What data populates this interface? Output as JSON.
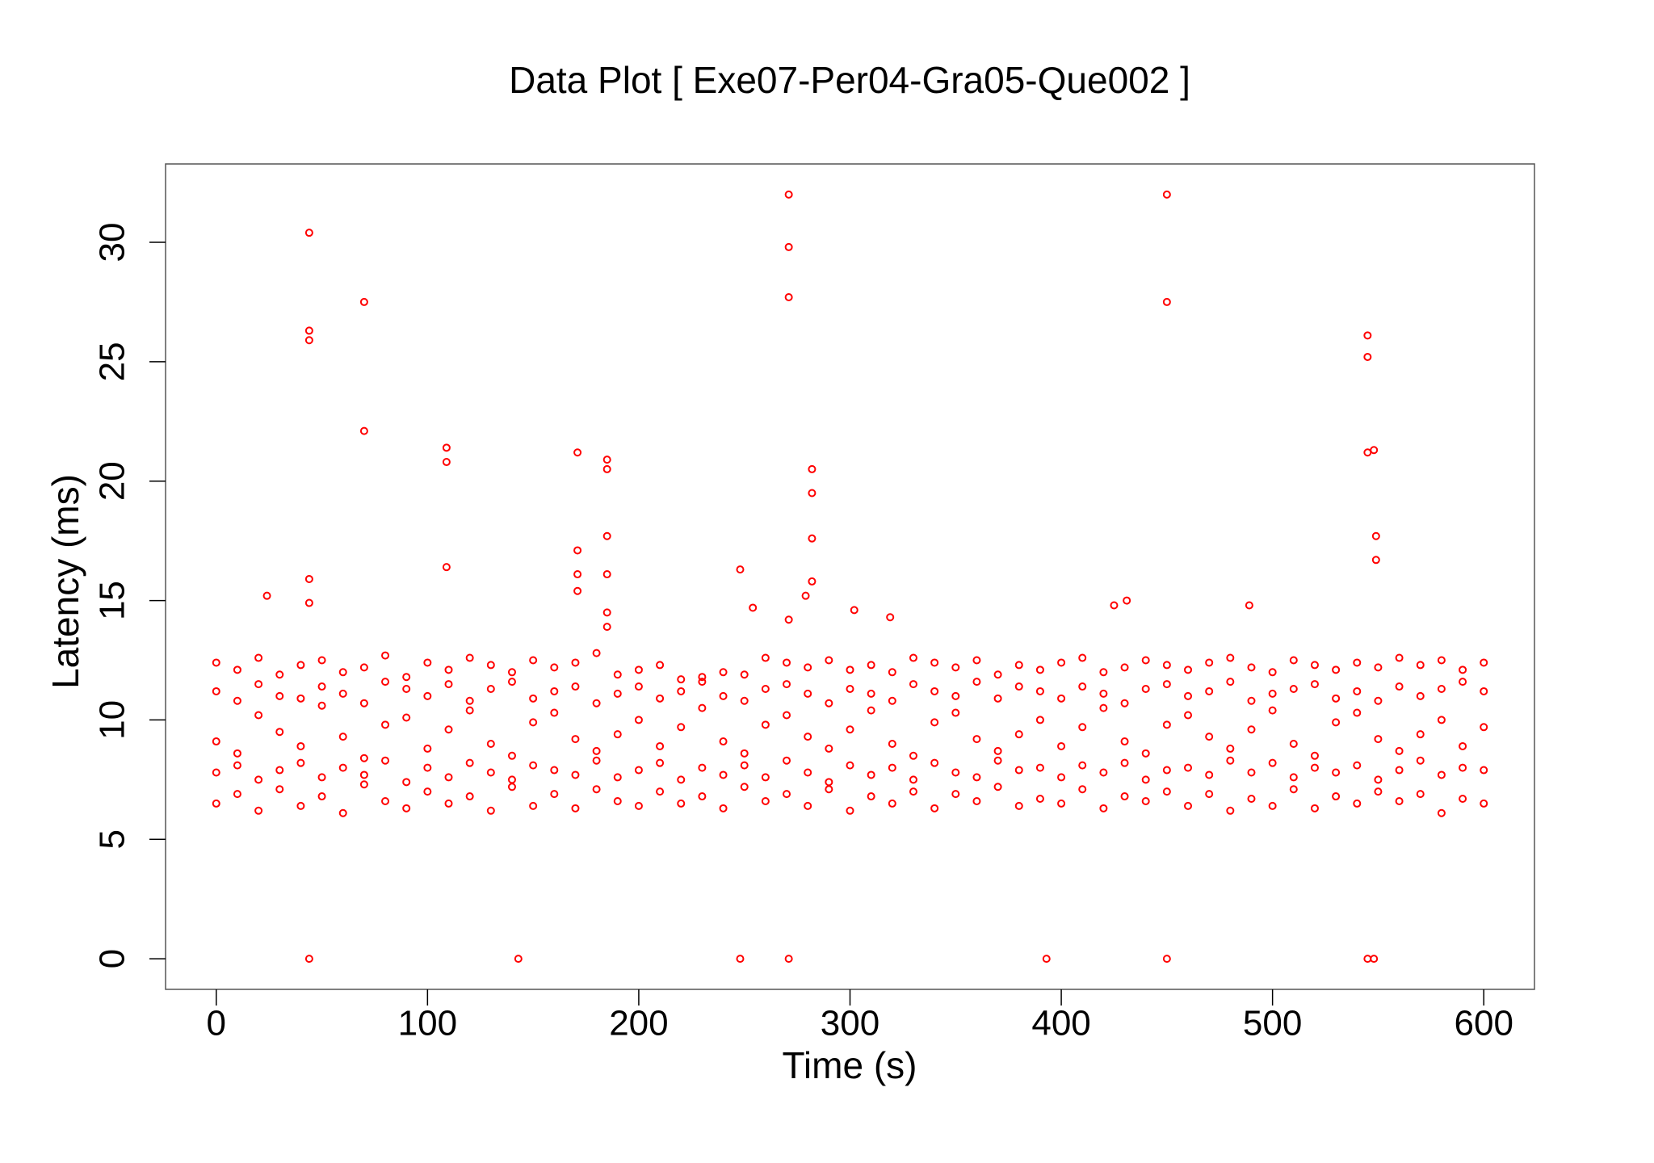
{
  "chart_data": {
    "type": "scatter",
    "title": "Data Plot [ Exe07-Per04-Gra05-Que002 ]",
    "xlabel": "Time (s)",
    "ylabel": "Latency (ms)",
    "xlim": [
      -24,
      624
    ],
    "ylim": [
      -1.28,
      33.28
    ],
    "xticks": [
      0,
      100,
      200,
      300,
      400,
      500,
      600
    ],
    "yticks": [
      0,
      5,
      10,
      15,
      20,
      25,
      30
    ],
    "color": "#ff0000",
    "series": [
      {
        "x": [
          44,
          44,
          44,
          44,
          44,
          44,
          70,
          70,
          109,
          109,
          109,
          143,
          171,
          171,
          171,
          171,
          185,
          185,
          185,
          185,
          185,
          185,
          248,
          248,
          254,
          271,
          271,
          271,
          271,
          271,
          282,
          282,
          282,
          282,
          279,
          302,
          319,
          393,
          425,
          431,
          450,
          450,
          450,
          489,
          545,
          545,
          545,
          548,
          549,
          549,
          545,
          548,
          24
        ],
        "values": [
          30.4,
          26.3,
          25.9,
          15.9,
          14.9,
          0,
          27.5,
          22.1,
          21.4,
          20.8,
          16.4,
          0,
          21.2,
          17.1,
          16.1,
          15.4,
          20.9,
          20.5,
          17.7,
          16.1,
          14.5,
          13.9,
          16.3,
          0,
          14.7,
          32,
          29.8,
          27.7,
          14.2,
          0,
          20.5,
          19.5,
          17.6,
          15.8,
          15.2,
          14.6,
          14.3,
          0,
          14.8,
          15.0,
          32,
          27.5,
          0,
          14.8,
          26.1,
          25.2,
          21.2,
          21.3,
          17.7,
          16.7,
          0,
          0,
          15.2
        ]
      },
      {
        "x": [
          0,
          10,
          20,
          30,
          40,
          50,
          60,
          70,
          80,
          90,
          100,
          110,
          120,
          130,
          140,
          150,
          160,
          170,
          180,
          190,
          200,
          210,
          220,
          230,
          240,
          250,
          260,
          270,
          280,
          290,
          300,
          310,
          320,
          330,
          340,
          350,
          360,
          370,
          380,
          390,
          400,
          410,
          420,
          430,
          440,
          450,
          460,
          470,
          480,
          490,
          500,
          510,
          520,
          530,
          540,
          550,
          560,
          570,
          580,
          590,
          600
        ],
        "values": [
          12.4,
          12.1,
          12.6,
          11.9,
          12.3,
          12.5,
          12.0,
          12.2,
          12.7,
          11.8,
          12.4,
          12.1,
          12.6,
          12.3,
          12.0,
          12.5,
          12.2,
          12.4,
          12.8,
          11.9,
          12.1,
          12.3,
          11.7,
          11.8,
          12.0,
          11.9,
          12.6,
          12.4,
          12.2,
          12.5,
          12.1,
          12.3,
          12.0,
          12.6,
          12.4,
          12.2,
          12.5,
          11.9,
          12.3,
          12.1,
          12.4,
          12.6,
          12.0,
          12.2,
          12.5,
          12.3,
          12.1,
          12.4,
          12.6,
          12.2,
          12.0,
          12.5,
          12.3,
          12.1,
          12.4,
          12.2,
          12.6,
          12.3,
          12.5,
          12.1,
          12.4
        ]
      },
      {
        "x": [
          0,
          10,
          20,
          30,
          40,
          50,
          60,
          70,
          80,
          90,
          100,
          110,
          120,
          130,
          140,
          150,
          160,
          170,
          180,
          190,
          200,
          210,
          220,
          230,
          240,
          250,
          260,
          270,
          280,
          290,
          300,
          310,
          320,
          330,
          340,
          350,
          360,
          370,
          380,
          390,
          400,
          410,
          420,
          430,
          440,
          450,
          460,
          470,
          480,
          490,
          500,
          510,
          520,
          530,
          540,
          550,
          560,
          570,
          580,
          590,
          600
        ],
        "values": [
          11.2,
          10.8,
          11.5,
          11.0,
          10.9,
          11.4,
          11.1,
          10.7,
          11.6,
          11.3,
          11.0,
          11.5,
          10.8,
          11.3,
          11.6,
          10.9,
          11.2,
          11.4,
          10.7,
          11.1,
          11.4,
          10.9,
          11.2,
          11.6,
          11.0,
          10.8,
          11.3,
          11.5,
          11.1,
          10.7,
          11.3,
          11.1,
          10.8,
          11.5,
          11.2,
          11.0,
          11.6,
          10.9,
          11.4,
          11.2,
          10.9,
          11.4,
          11.1,
          10.7,
          11.3,
          11.5,
          11.0,
          11.2,
          11.6,
          10.8,
          11.1,
          11.3,
          11.5,
          10.9,
          11.2,
          10.8,
          11.4,
          11.0,
          11.3,
          11.6,
          11.2
        ]
      },
      {
        "x": [
          0,
          10,
          20,
          30,
          40,
          50,
          60,
          70,
          80,
          90,
          100,
          110,
          120,
          130,
          140,
          150,
          160,
          170,
          180,
          190,
          200,
          210,
          220,
          230,
          240,
          250,
          260,
          270,
          280,
          290,
          300,
          310,
          320,
          330,
          340,
          350,
          360,
          370,
          380,
          390,
          400,
          410,
          420,
          430,
          440,
          450,
          460,
          470,
          480,
          490,
          500,
          510,
          520,
          530,
          540,
          550,
          560,
          570,
          580,
          590,
          600
        ],
        "values": [
          9.1,
          8.6,
          10.2,
          9.5,
          8.9,
          10.6,
          9.3,
          8.4,
          9.8,
          10.1,
          8.8,
          9.6,
          10.4,
          9.0,
          8.5,
          9.9,
          10.3,
          9.2,
          8.7,
          9.4,
          10.0,
          8.9,
          9.7,
          10.5,
          9.1,
          8.6,
          9.8,
          10.2,
          9.3,
          8.8,
          9.6,
          10.4,
          9.0,
          8.5,
          9.9,
          10.3,
          9.2,
          8.7,
          9.4,
          10.0,
          8.9,
          9.7,
          10.5,
          9.1,
          8.6,
          9.8,
          10.2,
          9.3,
          8.8,
          9.6,
          10.4,
          9.0,
          8.5,
          9.9,
          10.3,
          9.2,
          8.7,
          9.4,
          10.0,
          8.9,
          9.7
        ]
      },
      {
        "x": [
          0,
          10,
          20,
          30,
          40,
          50,
          60,
          70,
          80,
          90,
          100,
          110,
          120,
          130,
          140,
          150,
          160,
          170,
          180,
          190,
          200,
          210,
          220,
          230,
          240,
          250,
          260,
          270,
          280,
          290,
          300,
          310,
          320,
          330,
          340,
          350,
          360,
          370,
          380,
          390,
          400,
          410,
          420,
          430,
          440,
          450,
          460,
          470,
          480,
          490,
          500,
          510,
          520,
          530,
          540,
          550,
          560,
          570,
          580,
          590,
          600
        ],
        "values": [
          7.8,
          8.1,
          7.5,
          7.9,
          8.2,
          7.6,
          8.0,
          7.7,
          8.3,
          7.4,
          8.0,
          7.6,
          8.2,
          7.8,
          7.5,
          8.1,
          7.9,
          7.7,
          8.3,
          7.6,
          7.9,
          8.2,
          7.5,
          8.0,
          7.7,
          8.1,
          7.6,
          8.3,
          7.8,
          7.4,
          8.1,
          7.7,
          8.0,
          7.5,
          8.2,
          7.8,
          7.6,
          8.3,
          7.9,
          8.0,
          7.6,
          8.1,
          7.8,
          8.2,
          7.5,
          7.9,
          8.0,
          7.7,
          8.3,
          7.8,
          8.2,
          7.6,
          8.0,
          7.8,
          8.1,
          7.5,
          7.9,
          8.3,
          7.7,
          8.0,
          7.9
        ]
      },
      {
        "x": [
          0,
          10,
          20,
          30,
          40,
          50,
          60,
          70,
          80,
          90,
          100,
          110,
          120,
          130,
          140,
          150,
          160,
          170,
          180,
          190,
          200,
          210,
          220,
          230,
          240,
          250,
          260,
          270,
          280,
          290,
          300,
          310,
          320,
          330,
          340,
          350,
          360,
          370,
          380,
          390,
          400,
          410,
          420,
          430,
          440,
          450,
          460,
          470,
          480,
          490,
          500,
          510,
          520,
          530,
          540,
          550,
          560,
          570,
          580,
          590,
          600
        ],
        "values": [
          6.5,
          6.9,
          6.2,
          7.1,
          6.4,
          6.8,
          6.1,
          7.3,
          6.6,
          6.3,
          7.0,
          6.5,
          6.8,
          6.2,
          7.2,
          6.4,
          6.9,
          6.3,
          7.1,
          6.6,
          6.4,
          7.0,
          6.5,
          6.8,
          6.3,
          7.2,
          6.6,
          6.9,
          6.4,
          7.1,
          6.2,
          6.8,
          6.5,
          7.0,
          6.3,
          6.9,
          6.6,
          7.2,
          6.4,
          6.7,
          6.5,
          7.1,
          6.3,
          6.8,
          6.6,
          7.0,
          6.4,
          6.9,
          6.2,
          6.7,
          6.4,
          7.1,
          6.3,
          6.8,
          6.5,
          7.0,
          6.6,
          6.9,
          6.1,
          6.7,
          6.5
        ]
      }
    ]
  }
}
